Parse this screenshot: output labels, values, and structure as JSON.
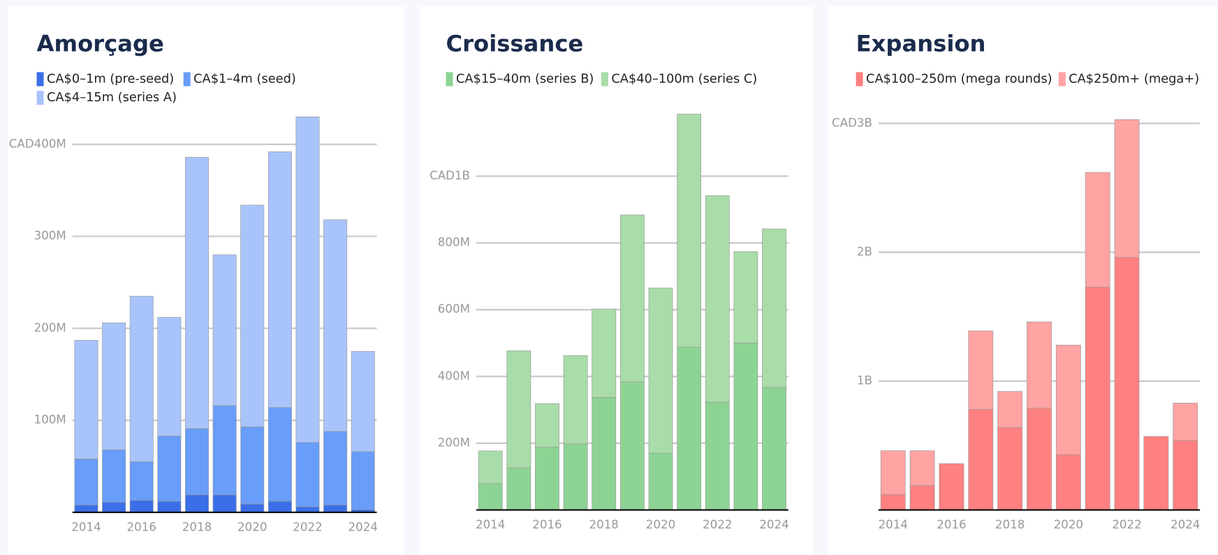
{
  "chart_data": [
    {
      "type": "bar",
      "stacked": true,
      "title": "Amorçage",
      "x": [
        2014,
        2015,
        2016,
        2017,
        2018,
        2019,
        2020,
        2021,
        2022,
        2023,
        2024
      ],
      "xlim": [
        2013.5,
        2024.5
      ],
      "xticks": [
        2014,
        2016,
        2018,
        2020,
        2022,
        2024
      ],
      "ylim": [
        0,
        435000000
      ],
      "yticks": [
        {
          "value": 100000000,
          "label": "100M"
        },
        {
          "value": 200000000,
          "label": "200M"
        },
        {
          "value": 300000000,
          "label": "300M"
        },
        {
          "value": 400000000,
          "label": "CAD400M"
        }
      ],
      "grid": true,
      "series": [
        {
          "name": "CA$0–1m (pre-seed)",
          "color": "#3a6fe8",
          "values": [
            8000000,
            11000000,
            13000000,
            12000000,
            19000000,
            19000000,
            9000000,
            12000000,
            6000000,
            8000000,
            3000000
          ]
        },
        {
          "name": "CA$1–4m (seed)",
          "color": "#689df9",
          "values": [
            50000000,
            57000000,
            42000000,
            71000000,
            72000000,
            97000000,
            84000000,
            102000000,
            70000000,
            80000000,
            63000000
          ]
        },
        {
          "name": "CA$4–15m (series A)",
          "color": "#a9c4fb",
          "values": [
            129000000,
            138000000,
            180000000,
            129000000,
            295000000,
            164000000,
            241000000,
            278000000,
            354000000,
            230000000,
            109000000
          ]
        }
      ]
    },
    {
      "type": "bar",
      "stacked": true,
      "title": "Croissance",
      "x": [
        2014,
        2015,
        2016,
        2017,
        2018,
        2019,
        2020,
        2021,
        2022,
        2023,
        2024
      ],
      "xlim": [
        2013.5,
        2024.5
      ],
      "xticks": [
        2014,
        2016,
        2018,
        2020,
        2022,
        2024
      ],
      "ylim": [
        0,
        1190000000
      ],
      "yticks": [
        {
          "value": 200000000,
          "label": "200M"
        },
        {
          "value": 400000000,
          "label": "400M"
        },
        {
          "value": 600000000,
          "label": "600M"
        },
        {
          "value": 800000000,
          "label": "800M"
        },
        {
          "value": 1000000000,
          "label": "CAD1B"
        }
      ],
      "grid": true,
      "series": [
        {
          "name": "CA$15–40m (series B)",
          "color": "#8dd494",
          "values": [
            79000000,
            126000000,
            188000000,
            198000000,
            337000000,
            384000000,
            170000000,
            488000000,
            323000000,
            500000000,
            367000000
          ]
        },
        {
          "name": "CA$40–100m (series C)",
          "color": "#a8dca8",
          "values": [
            98000000,
            351000000,
            131000000,
            265000000,
            265000000,
            500000000,
            495000000,
            698000000,
            619000000,
            274000000,
            475000000
          ]
        }
      ]
    },
    {
      "type": "bar",
      "stacked": true,
      "title": "Expansion",
      "x": [
        2014,
        2015,
        2016,
        2017,
        2018,
        2019,
        2020,
        2021,
        2022,
        2023,
        2024
      ],
      "xlim": [
        2013.5,
        2024.5
      ],
      "xticks": [
        2014,
        2016,
        2018,
        2020,
        2022,
        2024
      ],
      "ylim": [
        0,
        3050000000
      ],
      "yticks": [
        {
          "value": 1000000000,
          "label": "1B"
        },
        {
          "value": 2000000000,
          "label": "2B"
        },
        {
          "value": 3000000000,
          "label": "CAD3B"
        }
      ],
      "grid": true,
      "series": [
        {
          "name": "CA$100–250m (mega rounds)",
          "color": "#ff8080",
          "values": [
            120000000,
            190000000,
            360000000,
            780000000,
            640000000,
            790000000,
            430000000,
            1730000000,
            1960000000,
            570000000,
            540000000
          ]
        },
        {
          "name": "CA$250m+ (mega+)",
          "color": "#ffa3a3",
          "values": [
            340000000,
            270000000,
            0,
            610000000,
            280000000,
            670000000,
            850000000,
            890000000,
            1070000000,
            0,
            290000000
          ]
        }
      ]
    }
  ]
}
